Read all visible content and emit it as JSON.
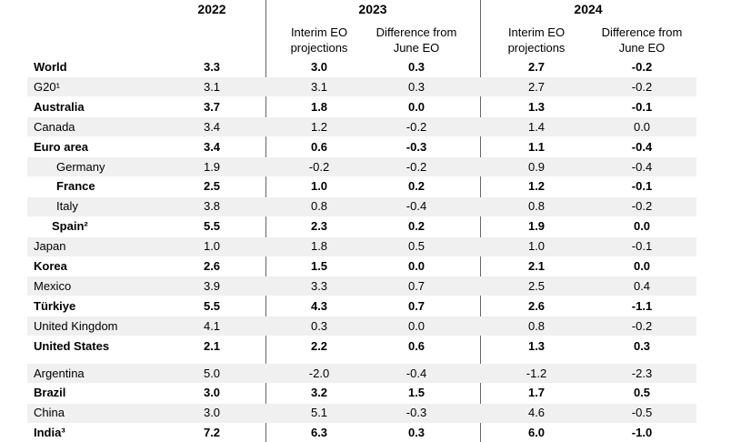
{
  "table": {
    "years": [
      "2022",
      "2023",
      "2024"
    ],
    "subheaders": [
      "Interim EO projections",
      "Difference from June EO",
      "Interim EO projections",
      "Difference from June EO"
    ],
    "rows": [
      [
        "World",
        "3.3",
        "3.0",
        "0.3",
        "2.7",
        "-0.2"
      ],
      [
        "G20¹",
        "3.1",
        "3.1",
        "0.3",
        "2.7",
        "-0.2"
      ],
      [
        "Australia",
        "3.7",
        "1.8",
        "0.0",
        "1.3",
        "-0.1"
      ],
      [
        "Canada",
        "3.4",
        "1.2",
        "-0.2",
        "1.4",
        "0.0"
      ],
      [
        "Euro area",
        "3.4",
        "0.6",
        "-0.3",
        "1.1",
        "-0.4"
      ],
      [
        "Germany",
        "1.9",
        "-0.2",
        "-0.2",
        "0.9",
        "-0.4"
      ],
      [
        "France",
        "2.5",
        "1.0",
        "0.2",
        "1.2",
        "-0.1"
      ],
      [
        "Italy",
        "3.8",
        "0.8",
        "-0.4",
        "0.8",
        "-0.2"
      ],
      [
        "Spain²",
        "5.5",
        "2.3",
        "0.2",
        "1.9",
        "0.0"
      ],
      [
        "Japan",
        "1.0",
        "1.8",
        "0.5",
        "1.0",
        "-0.1"
      ],
      [
        "Korea",
        "2.6",
        "1.5",
        "0.0",
        "2.1",
        "0.0"
      ],
      [
        "Mexico",
        "3.9",
        "3.3",
        "0.7",
        "2.5",
        "0.4"
      ],
      [
        "Türkiye",
        "5.5",
        "4.3",
        "0.7",
        "2.6",
        "-1.1"
      ],
      [
        "United Kingdom",
        "4.1",
        "0.3",
        "0.0",
        "0.8",
        "-0.2"
      ],
      [
        "United States",
        "2.1",
        "2.2",
        "0.6",
        "1.3",
        "0.3"
      ],
      [
        "Argentina",
        "5.0",
        "-2.0",
        "-0.4",
        "-1.2",
        "-2.3"
      ],
      [
        "Brazil",
        "3.0",
        "3.2",
        "1.5",
        "1.7",
        "0.5"
      ],
      [
        "China",
        "3.0",
        "5.1",
        "-0.3",
        "4.6",
        "-0.5"
      ],
      [
        "India³",
        "7.2",
        "6.3",
        "0.3",
        "6.0",
        "-1.0"
      ]
    ]
  }
}
